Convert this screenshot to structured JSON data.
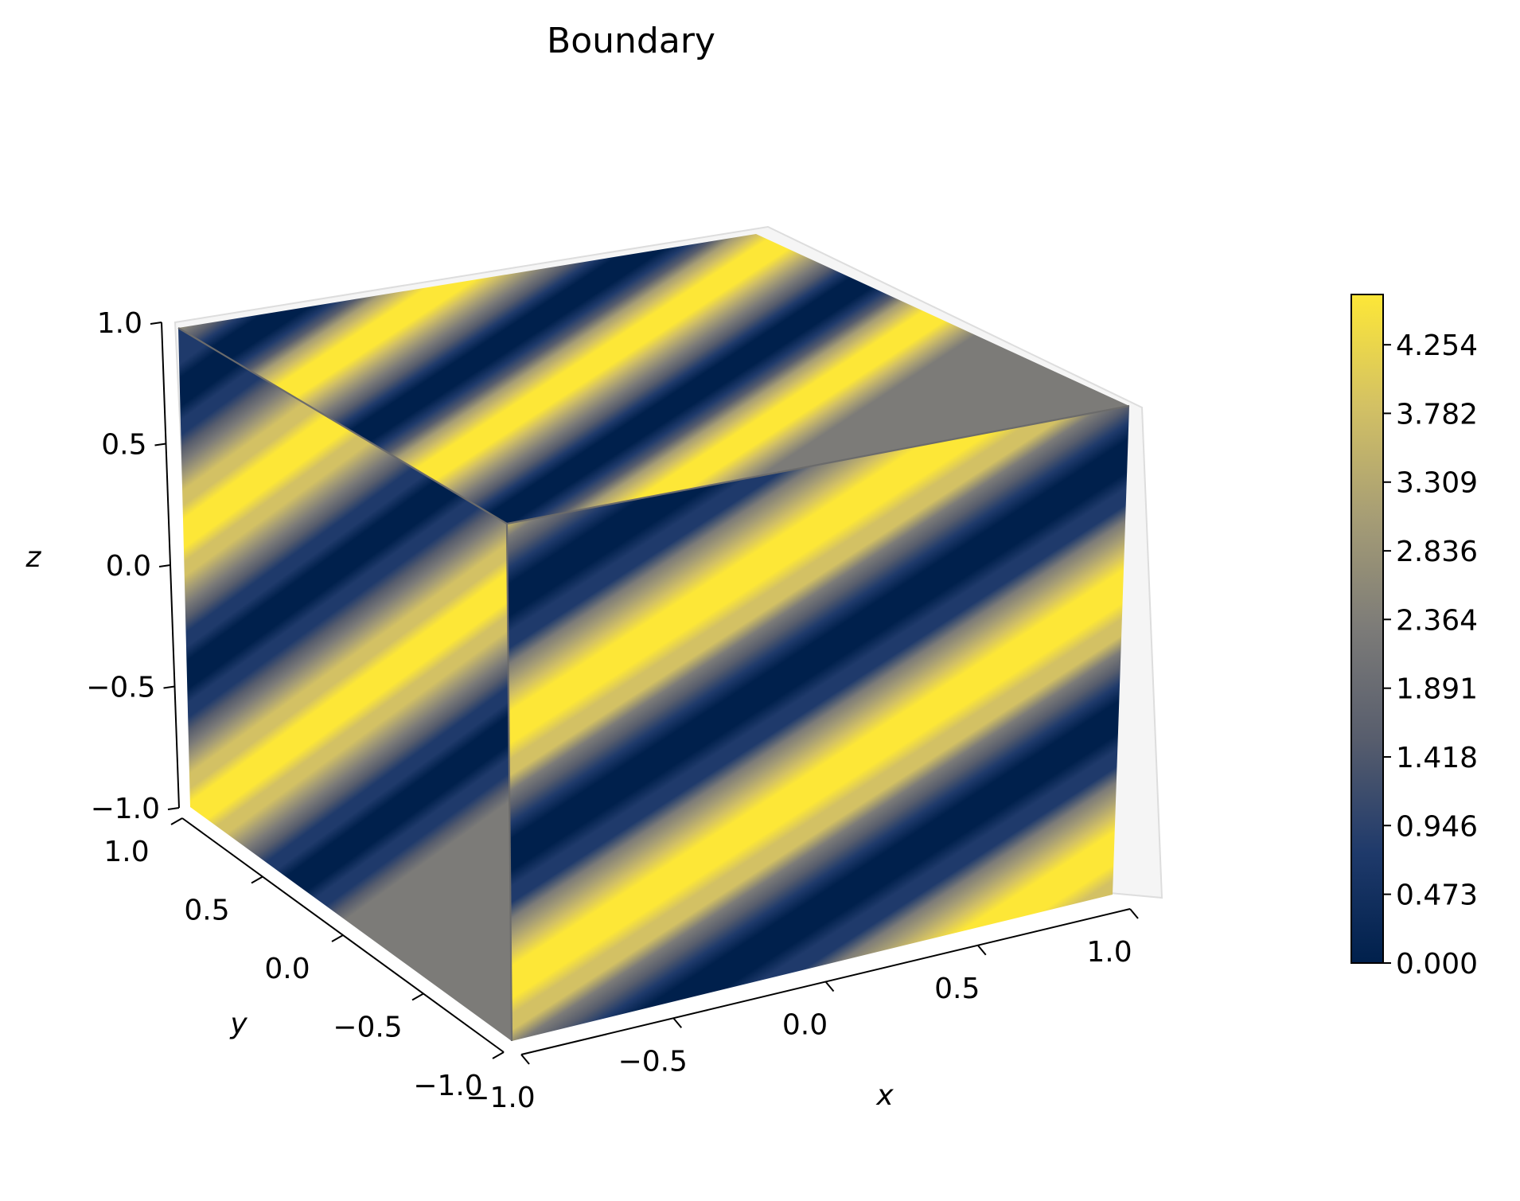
{
  "chart_data": {
    "type": "surface3d",
    "title": "Boundary",
    "xlabel": "x",
    "ylabel": "y",
    "zlabel": "z",
    "xlim": [
      -1.0,
      1.0
    ],
    "ylim": [
      -1.0,
      1.0
    ],
    "zlim": [
      -1.0,
      1.0
    ],
    "x_ticks": [
      "−1.0",
      "−0.5",
      "0.0",
      "0.5",
      "1.0"
    ],
    "y_ticks": [
      "−1.0",
      "−0.5",
      "0.0",
      "0.5",
      "1.0"
    ],
    "z_ticks": [
      "−1.0",
      "−0.5",
      "0.0",
      "0.5",
      "1.0"
    ],
    "faces_shown": [
      "top (z = 1)",
      "left (x = −1)",
      "front (y = −1)"
    ],
    "pattern": "diagonal stripes",
    "colormap": "cividis",
    "colormap_stops": [
      "#00204c",
      "#1f3a6b",
      "#575d6d",
      "#7c7b78",
      "#a69d75",
      "#d3c164",
      "#fde737"
    ],
    "colorbar": {
      "ticks": [
        "0.000",
        "0.473",
        "0.946",
        "1.418",
        "1.891",
        "2.364",
        "2.836",
        "3.309",
        "3.782",
        "4.254"
      ],
      "range": [
        0.0,
        4.6
      ]
    },
    "grid": true
  }
}
